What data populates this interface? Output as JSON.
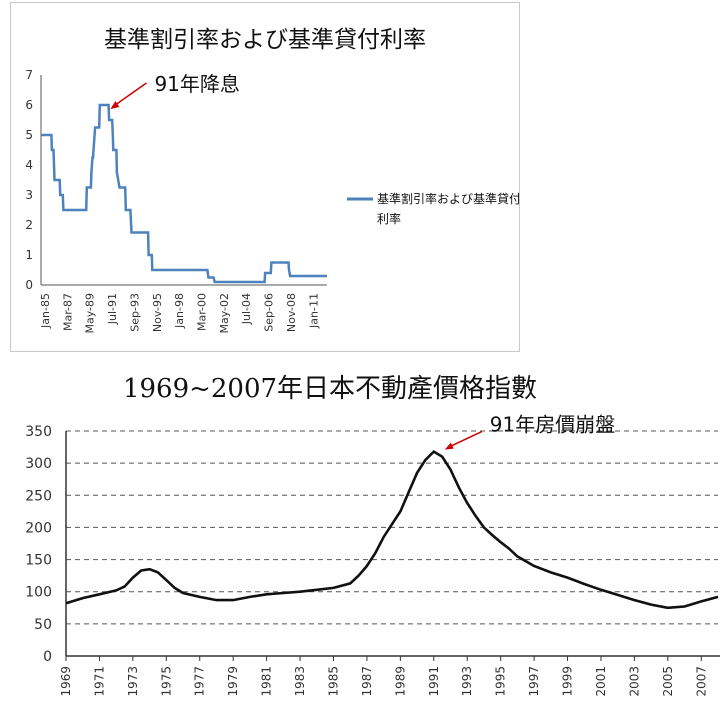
{
  "chart_data": [
    {
      "type": "line",
      "title": "基準割引率および基準貸付利率",
      "legend": {
        "label": "基準割引率および基準貸付利率",
        "position": "right",
        "color": "#4f81bd"
      },
      "ylim": [
        0,
        7
      ],
      "yticks": [
        0,
        1,
        2,
        3,
        4,
        5,
        6,
        7
      ],
      "x_tick_labels": [
        "Jan-85",
        "Mar-87",
        "May-89",
        "Jul-91",
        "Sep-93",
        "Nov-95",
        "Jan-98",
        "Mar-00",
        "May-02",
        "Jul-04",
        "Sep-06",
        "Nov-08",
        "Jan-11"
      ],
      "xlim": [
        1985.0,
        2012.5
      ],
      "series": [
        {
          "name": "基準割引率および基準貸付利率",
          "color": "#4f81bd",
          "points": [
            [
              1985.0,
              5.0
            ],
            [
              1986.0,
              5.0
            ],
            [
              1986.05,
              4.5
            ],
            [
              1986.2,
              4.5
            ],
            [
              1986.25,
              4.0
            ],
            [
              1986.3,
              3.5
            ],
            [
              1986.8,
              3.5
            ],
            [
              1986.85,
              3.0
            ],
            [
              1987.1,
              3.0
            ],
            [
              1987.15,
              2.5
            ],
            [
              1989.35,
              2.5
            ],
            [
              1989.4,
              3.25
            ],
            [
              1989.8,
              3.25
            ],
            [
              1989.85,
              3.75
            ],
            [
              1989.95,
              4.25
            ],
            [
              1990.0,
              4.25
            ],
            [
              1990.2,
              5.25
            ],
            [
              1990.6,
              5.25
            ],
            [
              1990.65,
              6.0
            ],
            [
              1991.5,
              6.0
            ],
            [
              1991.55,
              5.5
            ],
            [
              1991.85,
              5.5
            ],
            [
              1991.9,
              5.0
            ],
            [
              1991.95,
              4.5
            ],
            [
              1992.25,
              4.5
            ],
            [
              1992.3,
              3.75
            ],
            [
              1992.55,
              3.25
            ],
            [
              1993.1,
              3.25
            ],
            [
              1993.15,
              2.5
            ],
            [
              1993.6,
              2.5
            ],
            [
              1993.7,
              1.75
            ],
            [
              1995.3,
              1.75
            ],
            [
              1995.35,
              1.0
            ],
            [
              1995.65,
              1.0
            ],
            [
              1995.7,
              0.5
            ],
            [
              2001.0,
              0.5
            ],
            [
              2001.1,
              0.25
            ],
            [
              2001.6,
              0.25
            ],
            [
              2001.7,
              0.1
            ],
            [
              2006.5,
              0.1
            ],
            [
              2006.55,
              0.4
            ],
            [
              2007.1,
              0.4
            ],
            [
              2007.15,
              0.75
            ],
            [
              2008.8,
              0.75
            ],
            [
              2008.85,
              0.5
            ],
            [
              2008.95,
              0.3
            ],
            [
              2012.5,
              0.3
            ]
          ]
        }
      ],
      "annotation": {
        "text": "91年降息",
        "target": [
          1991.1,
          6.0
        ],
        "arrow_color": "#cc0000"
      }
    },
    {
      "type": "line",
      "title": "1969~2007年日本不動產價格指數",
      "ylim": [
        0,
        350
      ],
      "yticks": [
        0,
        50,
        100,
        150,
        200,
        250,
        300,
        350
      ],
      "x_tick_labels": [
        "1969",
        "1971",
        "1973",
        "1975",
        "1977",
        "1979",
        "1981",
        "1983",
        "1985",
        "1987",
        "1989",
        "1991",
        "1993",
        "1995",
        "1997",
        "1999",
        "2001",
        "2003",
        "2005",
        "2007"
      ],
      "xlim": [
        1969,
        2008
      ],
      "grid": "horizontal dashed",
      "series": [
        {
          "points": [
            [
              1969.0,
              82
            ],
            [
              1970.0,
              90
            ],
            [
              1971.0,
              96
            ],
            [
              1972.0,
              102
            ],
            [
              1972.5,
              108
            ],
            [
              1973.0,
              122
            ],
            [
              1973.5,
              133
            ],
            [
              1974.0,
              135
            ],
            [
              1974.5,
              130
            ],
            [
              1975.0,
              118
            ],
            [
              1975.5,
              106
            ],
            [
              1976.0,
              98
            ],
            [
              1977.0,
              92
            ],
            [
              1978.0,
              87
            ],
            [
              1979.0,
              87
            ],
            [
              1980.0,
              92
            ],
            [
              1981.0,
              96
            ],
            [
              1982.0,
              98
            ],
            [
              1983.0,
              100
            ],
            [
              1984.0,
              103
            ],
            [
              1985.0,
              106
            ],
            [
              1986.0,
              113
            ],
            [
              1986.5,
              125
            ],
            [
              1987.0,
              140
            ],
            [
              1987.5,
              160
            ],
            [
              1988.0,
              185
            ],
            [
              1988.5,
              205
            ],
            [
              1989.0,
              225
            ],
            [
              1989.5,
              255
            ],
            [
              1990.0,
              285
            ],
            [
              1990.5,
              305
            ],
            [
              1991.0,
              318
            ],
            [
              1991.5,
              310
            ],
            [
              1992.0,
              290
            ],
            [
              1992.5,
              262
            ],
            [
              1993.0,
              238
            ],
            [
              1993.5,
              218
            ],
            [
              1994.0,
              200
            ],
            [
              1994.5,
              188
            ],
            [
              1995.0,
              177
            ],
            [
              1995.5,
              167
            ],
            [
              1996.0,
              155
            ],
            [
              1997.0,
              140
            ],
            [
              1998.0,
              130
            ],
            [
              1999.0,
              122
            ],
            [
              2000.0,
              112
            ],
            [
              2001.0,
              103
            ],
            [
              2002.0,
              95
            ],
            [
              2003.0,
              87
            ],
            [
              2004.0,
              80
            ],
            [
              2005.0,
              75
            ],
            [
              2006.0,
              77
            ],
            [
              2007.0,
              85
            ],
            [
              2008.0,
              92
            ]
          ]
        }
      ],
      "annotation": {
        "text": "91年房價崩盤",
        "target": [
          1991.0,
          318
        ],
        "arrow_color": "#cc0000"
      }
    }
  ]
}
